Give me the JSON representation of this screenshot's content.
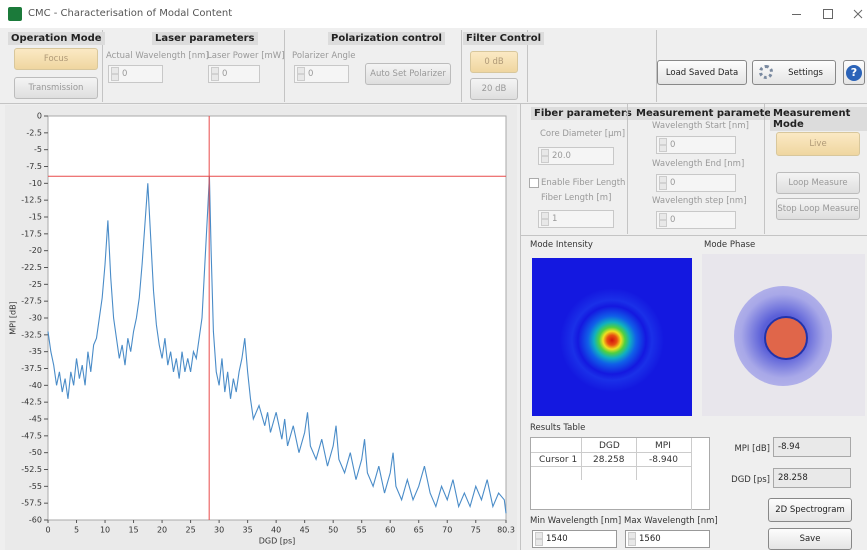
{
  "window": {
    "title": "CMC - Characterisation of Modal Content"
  },
  "operation_mode": {
    "title": "Operation Mode",
    "buttons": [
      "Focus",
      "Transmission"
    ]
  },
  "laser_parameters": {
    "title": "Laser parameters",
    "wavelength_label": "Actual Wavelength [nm]",
    "wavelength_value": "0",
    "power_label": "Laser Power [mW]",
    "power_value": "0"
  },
  "polarization_control": {
    "title": "Polarization control",
    "angle_label": "Polarizer Angle",
    "angle_value": "0",
    "button": "Auto Set Polarizer"
  },
  "filter_control": {
    "title": "Filter Control",
    "buttons": [
      "0 dB",
      "20 dB"
    ]
  },
  "toolbar": {
    "load": "Load Saved Data",
    "settings": "Settings",
    "help": "?"
  },
  "fiber_parameters": {
    "title": "Fiber parameters",
    "core_label": "Core Diameter [µm]",
    "core_value": "20.0",
    "enable_label": "Enable Fiber Length",
    "length_label": "Fiber Length [m]",
    "length_value": "1"
  },
  "measurement_parameters": {
    "title": "Measurement parameters",
    "start_label": "Wavelength Start [nm]",
    "start_value": "0",
    "end_label": "Wavelength End [nm]",
    "end_value": "0",
    "step_label": "Wavelength step [nm]",
    "step_value": "0"
  },
  "measurement_mode": {
    "title": "Measurement Mode",
    "buttons": [
      "Live",
      "Loop Measure",
      "Stop Loop Measure"
    ]
  },
  "mode_intensity": {
    "title": "Mode Intensity"
  },
  "mode_phase": {
    "title": "Mode Phase"
  },
  "results_table": {
    "title": "Results Table",
    "columns": [
      "DGD",
      "MPI"
    ],
    "rows": [
      [
        "Cursor 1",
        "28.258",
        "-8.940"
      ]
    ]
  },
  "readouts": {
    "mpi_label": "MPI [dB]",
    "mpi_value": "-8.94",
    "dgd_label": "DGD [ps]",
    "dgd_value": "28.258"
  },
  "actions": {
    "spectrogram": "2D Spectrogram",
    "save": "Save"
  },
  "wavelength_range": {
    "min_label": "Min Wavelength [nm]",
    "min_value": "1540",
    "max_label": "Max Wavelength [nm]",
    "max_value": "1560"
  },
  "chart_data": {
    "type": "line",
    "x_label": "DGD [ps]",
    "y_label": "MPI [dB]",
    "color": "#4a8cc8",
    "grid": false,
    "x": [
      0,
      0.5,
      1,
      1.5,
      2,
      2.5,
      3,
      3.5,
      4,
      4.5,
      5,
      5.5,
      6,
      6.5,
      7,
      7.5,
      8,
      8.5,
      9,
      9.5,
      10,
      10.5,
      11,
      11.5,
      12,
      12.5,
      13,
      13.5,
      14,
      14.5,
      15,
      15.5,
      16,
      16.5,
      17,
      17.5,
      18,
      18.5,
      19,
      19.5,
      20,
      20.5,
      21,
      21.5,
      22,
      22.5,
      23,
      23.5,
      24,
      24.5,
      25,
      25.5,
      26,
      26.5,
      27,
      27.5,
      28,
      28.3,
      28.6,
      29,
      29.5,
      30,
      30.5,
      31,
      31.5,
      32,
      32.5,
      33,
      33.5,
      34,
      34.5,
      35,
      35.5,
      36,
      37,
      38,
      38.5,
      39,
      40,
      41,
      41.5,
      42,
      43,
      44,
      45,
      45.5,
      46,
      47,
      48,
      49,
      50,
      50.5,
      51,
      52,
      53,
      54,
      55,
      55.5,
      56,
      57,
      58,
      59,
      60,
      60.5,
      61,
      62,
      63,
      64,
      65,
      66,
      67,
      68,
      69,
      70,
      71,
      72,
      73,
      74,
      75,
      76,
      77,
      78,
      79,
      80,
      80.3
    ],
    "values": [
      -32,
      -35,
      -37,
      -40,
      -38,
      -41,
      -39,
      -42,
      -38,
      -40,
      -36,
      -39,
      -37,
      -40,
      -35,
      -38,
      -34,
      -33,
      -30,
      -27,
      -22,
      -15.5,
      -24,
      -30,
      -33,
      -36,
      -34,
      -37,
      -33,
      -35,
      -32,
      -30,
      -27,
      -22,
      -16,
      -10,
      -18,
      -26,
      -31,
      -34,
      -36,
      -33,
      -37,
      -35,
      -38,
      -36,
      -39,
      -35,
      -38,
      -36,
      -38,
      -35,
      -36,
      -33,
      -30,
      -22,
      -14,
      -8.9,
      -20,
      -32,
      -38,
      -40,
      -36,
      -41,
      -38,
      -42,
      -39,
      -41,
      -38,
      -36,
      -33,
      -38,
      -42,
      -45,
      -43,
      -46,
      -44,
      -47,
      -44,
      -48,
      -45,
      -49,
      -46,
      -50,
      -47,
      -44,
      -49,
      -51,
      -48,
      -52,
      -49,
      -46,
      -51,
      -53,
      -50,
      -54,
      -51,
      -48,
      -53,
      -55,
      -52,
      -56,
      -53,
      -50,
      -55,
      -57,
      -54,
      -57,
      -55,
      -52,
      -56,
      -58,
      -55,
      -57,
      -54,
      -58,
      -56,
      -58,
      -55,
      -57,
      -54,
      -58,
      -56,
      -57,
      -59
    ],
    "xlim": [
      0,
      80.3
    ],
    "ylim": [
      -60,
      0
    ],
    "xticks": [
      0,
      5,
      10,
      15,
      20,
      25,
      30,
      35,
      40,
      45,
      50,
      55,
      60,
      65,
      70,
      75,
      80.3
    ],
    "yticks": [
      0,
      -2.5,
      -5,
      -7.5,
      -10,
      -12.5,
      -15,
      -17.5,
      -20,
      -22.5,
      -25,
      -27.5,
      -30,
      -32.5,
      -35,
      -37.5,
      -40,
      -42.5,
      -45,
      -47.5,
      -50,
      -52.5,
      -55,
      -57.5,
      -60
    ],
    "cursor": {
      "x": 28.258,
      "y": -8.94,
      "color": "#e84a4a"
    }
  }
}
